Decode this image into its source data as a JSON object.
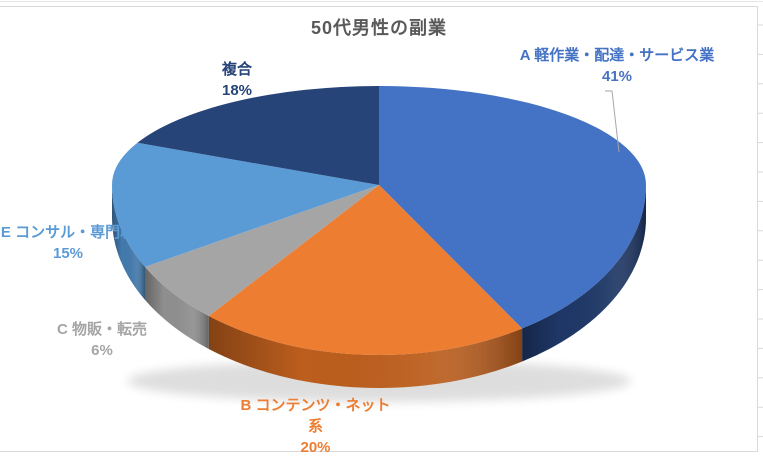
{
  "sheet": {
    "background": "#FFFFFF",
    "chart_border_color": "#D9D9D9",
    "gridline_color": "#E7E7E7",
    "tick_color": "#D9D9D9"
  },
  "chart_data": {
    "type": "pie",
    "style": "3d",
    "title": "50代男性の副業",
    "title_color": "#595959",
    "direction": "clockwise",
    "start_angle_deg": 0,
    "legend": "none",
    "leader_line_color": "#A6A6A6",
    "slices": [
      {
        "label": "A 軽作業・配達・サービス業",
        "pct": "41%",
        "value": 41,
        "color": "#4472C4",
        "side_color": "#1E3766"
      },
      {
        "label": "B コンテンツ・ネット系",
        "pct": "20%",
        "value": 20,
        "color": "#ED7D31",
        "side_color": "#BC5E1D"
      },
      {
        "label": "C 物販・転売",
        "pct": "6%",
        "value": 6,
        "color": "#A5A5A5",
        "side_color": "#8F8F8F"
      },
      {
        "label": "E コンサル・専門職",
        "pct": "15%",
        "value": 15,
        "color": "#5B9BD5",
        "side_color": "#4379AC"
      },
      {
        "label": "複合",
        "pct": "18%",
        "value": 18,
        "color": "#264478",
        "side_color": "#1A2F53"
      }
    ]
  }
}
